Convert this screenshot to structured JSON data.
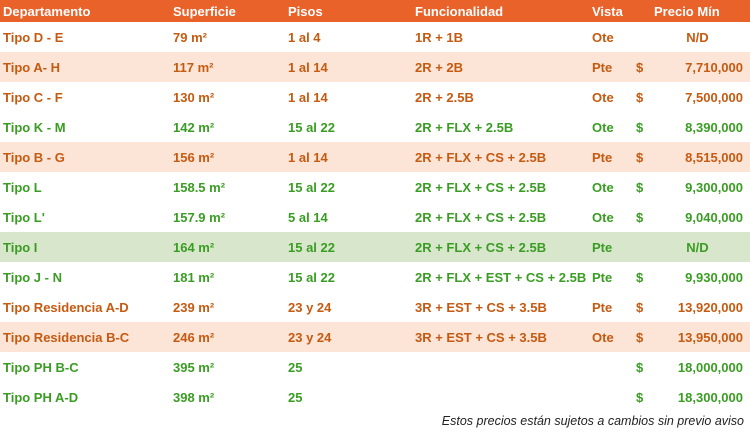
{
  "headers": {
    "departamento": "Departamento",
    "superficie": "Superficie",
    "pisos": "Pisos",
    "funcionalidad": "Funcionalidad",
    "vista": "Vista",
    "precio": "Precio Mín"
  },
  "rows": [
    {
      "departamento": "Tipo D - E",
      "superficie": "79 m²",
      "pisos": "1 al 4",
      "funcionalidad": "1R + 1B",
      "vista": "Ote",
      "currency": "",
      "precio": "N/D",
      "color": "orange",
      "bg": "none"
    },
    {
      "departamento": "Tipo A- H",
      "superficie": "117 m²",
      "pisos": "1 al 14",
      "funcionalidad": "2R + 2B",
      "vista": "Pte",
      "currency": "$",
      "precio": "7,710,000",
      "color": "orange",
      "bg": "pink"
    },
    {
      "departamento": "Tipo C - F",
      "superficie": "130 m²",
      "pisos": "1 al 14",
      "funcionalidad": "2R + 2.5B",
      "vista": "Ote",
      "currency": "$",
      "precio": "7,500,000",
      "color": "orange",
      "bg": "none"
    },
    {
      "departamento": "Tipo K - M",
      "superficie": "142 m²",
      "pisos": "15 al 22",
      "funcionalidad": "2R + FLX + 2.5B",
      "vista": "Ote",
      "currency": "$",
      "precio": "8,390,000",
      "color": "green",
      "bg": "none"
    },
    {
      "departamento": "Tipo B - G",
      "superficie": "156 m²",
      "pisos": "1 al 14",
      "funcionalidad": "2R + FLX + CS + 2.5B",
      "vista": "Pte",
      "currency": "$",
      "precio": "8,515,000",
      "color": "orange",
      "bg": "pink"
    },
    {
      "departamento": "Tipo L",
      "superficie": "158.5 m²",
      "pisos": "15 al 22",
      "funcionalidad": "2R + FLX + CS + 2.5B",
      "vista": "Ote",
      "currency": "$",
      "precio": "9,300,000",
      "color": "green",
      "bg": "none"
    },
    {
      "departamento": "Tipo L'",
      "superficie": "157.9 m²",
      "pisos": "5 al 14",
      "funcionalidad": "2R + FLX + CS + 2.5B",
      "vista": "Ote",
      "currency": "$",
      "precio": "9,040,000",
      "color": "green",
      "bg": "none"
    },
    {
      "departamento": "Tipo I",
      "superficie": "164 m²",
      "pisos": "15 al 22",
      "funcionalidad": "2R + FLX + CS + 2.5B",
      "vista": "Pte",
      "currency": "",
      "precio": "N/D",
      "color": "green",
      "bg": "green"
    },
    {
      "departamento": "Tipo J - N",
      "superficie": "181 m²",
      "pisos": "15 al 22",
      "funcionalidad": "2R + FLX + EST + CS + 2.5B",
      "vista": "Pte",
      "currency": "$",
      "precio": "9,930,000",
      "color": "green",
      "bg": "none"
    },
    {
      "departamento": "Tipo Residencia A-D",
      "superficie": "239 m²",
      "pisos": "23 y 24",
      "funcionalidad": "3R + EST + CS + 3.5B",
      "vista": "Pte",
      "currency": "$",
      "precio": "13,920,000",
      "color": "orange",
      "bg": "none"
    },
    {
      "departamento": "Tipo Residencia B-C",
      "superficie": "246 m²",
      "pisos": "23 y 24",
      "funcionalidad": "3R + EST + CS + 3.5B",
      "vista": "Ote",
      "currency": "$",
      "precio": "13,950,000",
      "color": "orange",
      "bg": "pink"
    },
    {
      "departamento": "Tipo PH B-C",
      "superficie": "395 m²",
      "pisos": "25",
      "funcionalidad": "",
      "vista": "",
      "currency": "$",
      "precio": "18,000,000",
      "color": "green",
      "bg": "none"
    },
    {
      "departamento": "Tipo PH A-D",
      "superficie": "398 m²",
      "pisos": "25",
      "funcionalidad": "",
      "vista": "",
      "currency": "$",
      "precio": "18,300,000",
      "color": "green",
      "bg": "none"
    }
  ],
  "note": "Estos precios están sujetos a cambios sin previo aviso",
  "colors": {
    "header_bg": "#e8622a",
    "orange_text": "#c55a11",
    "green_text": "#3a9d23",
    "pink_band": "#fce4d6",
    "green_band": "#d8e7cc"
  }
}
